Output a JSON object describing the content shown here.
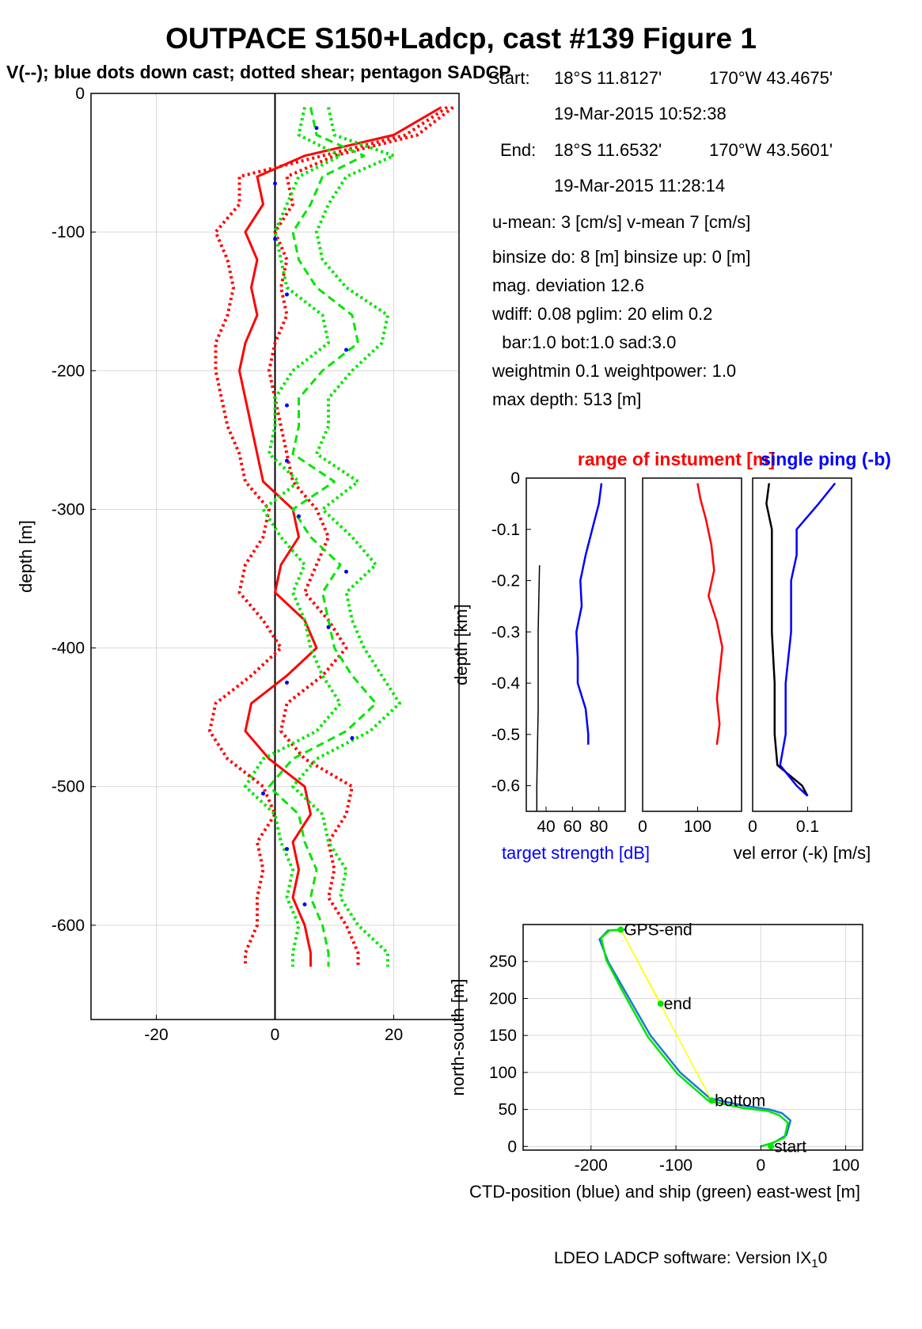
{
  "header": {
    "title": "OUTPACE S150+Ladcp, cast #139  Figure 1",
    "subtitle": "V(--); blue dots down cast; dotted shear; pentagon SADCP"
  },
  "info": {
    "start_label": "Start:",
    "start_lat": "18°S 11.8127'",
    "start_lon": "170°W 43.4675'",
    "start_time": "19-Mar-2015 10:52:38",
    "end_label": "End:",
    "end_lat": "18°S 11.6532'",
    "end_lon": "170°W 43.5601'",
    "end_time": "19-Mar-2015 11:28:14",
    "u_mean": "u-mean:   3 [cm/s]    v-mean   7 [cm/s]",
    "binsize": "binsize do: 8 [m]  binsize up:  0 [m]",
    "mag_dev": "mag. deviation 12.6",
    "wdiff": "wdiff: 0.08  pglim: 20  elim 0.2",
    "bar": "  bar:1.0 bot:1.0 sad:3.0",
    "weight": "weightmin 0.1  weightpower: 1.0",
    "maxdepth": "max depth: 513 [m]"
  },
  "footer": {
    "text": "LDEO LADCP software: Version IX",
    "sub": "1",
    "tail": "0"
  },
  "colors": {
    "red": "#ff0000",
    "green": "#00e600",
    "blue": "#0000ff",
    "yellow": "#ffff00",
    "ctd_blue": "#1f77d4",
    "black": "#000000"
  },
  "chart_data": [
    {
      "type": "line",
      "id": "velocity-profile",
      "ylabel": "depth [m]",
      "xlabel": "",
      "xlim": [
        -31,
        31
      ],
      "ylim": [
        -668,
        0
      ],
      "xticks": [
        -20,
        0,
        20
      ],
      "yticks": [
        0,
        -100,
        -200,
        -300,
        -400,
        -500,
        -600
      ],
      "grid": true,
      "series": [
        {
          "color": "red",
          "style": "solid",
          "depth": [
            -10,
            -30,
            -45,
            -60,
            -80,
            -100,
            -120,
            -140,
            -160,
            -180,
            -200,
            -220,
            -240,
            -260,
            -280,
            -300,
            -320,
            -340,
            -360,
            -380,
            -400,
            -420,
            -440,
            -460,
            -480,
            -500,
            -520,
            -540,
            -560,
            -580,
            -600,
            -620,
            -630
          ],
          "values": [
            28,
            20,
            5,
            -3,
            -2,
            -5,
            -3,
            -4,
            -3,
            -5,
            -6,
            -5,
            -4,
            -3,
            -2,
            3,
            4,
            1,
            0,
            5,
            7,
            2,
            -4,
            -5,
            -1,
            5,
            6,
            3,
            4,
            3,
            5,
            6,
            6
          ]
        },
        {
          "color": "red",
          "style": "dotted",
          "depth": [
            -10,
            -30,
            -45,
            -60,
            -80,
            -100,
            -120,
            -140,
            -160,
            -180,
            -200,
            -220,
            -240,
            -260,
            -280,
            -300,
            -320,
            -340,
            -360,
            -380,
            -400,
            -420,
            -440,
            -460,
            -480,
            -500,
            -520,
            -540,
            -560,
            -580,
            -600,
            -620,
            -630
          ],
          "values": [
            29,
            22,
            8,
            -6,
            -6,
            -10,
            -8,
            -7,
            -8,
            -10,
            -10,
            -9,
            -8,
            -6,
            -5,
            -1,
            -2,
            -5,
            -6,
            -2,
            1,
            -4,
            -10,
            -11,
            -8,
            -2,
            0,
            -3,
            -2,
            -3,
            -3,
            -5,
            -5
          ]
        },
        {
          "color": "red",
          "style": "dotted",
          "depth": [
            -10,
            -30,
            -45,
            -60,
            -80,
            -100,
            -120,
            -140,
            -160,
            -180,
            -200,
            -220,
            -240,
            -260,
            -280,
            -300,
            -320,
            -340,
            -360,
            -380,
            -400,
            -420,
            -440,
            -460,
            -480,
            -500,
            -520,
            -540,
            -560,
            -580,
            -600,
            -620,
            -630
          ],
          "values": [
            30,
            24,
            10,
            2,
            3,
            0,
            2,
            1,
            2,
            0,
            -1,
            0,
            1,
            2,
            3,
            7,
            9,
            7,
            5,
            9,
            12,
            8,
            2,
            1,
            5,
            13,
            12,
            9,
            10,
            9,
            12,
            14,
            14
          ]
        },
        {
          "color": "green",
          "style": "dashed",
          "depth": [
            -10,
            -30,
            -45,
            -60,
            -80,
            -100,
            -120,
            -140,
            -160,
            -180,
            -200,
            -220,
            -240,
            -260,
            -280,
            -300,
            -320,
            -340,
            -360,
            -380,
            -400,
            -420,
            -440,
            -460,
            -480,
            -500,
            -520,
            -540,
            -560,
            -580,
            -600,
            -620,
            -630
          ],
          "values": [
            6,
            7,
            15,
            8,
            6,
            3,
            4,
            7,
            13,
            14,
            8,
            4,
            4,
            3,
            10,
            3,
            6,
            11,
            8,
            9,
            10,
            13,
            17,
            12,
            3,
            -1,
            4,
            5,
            7,
            6,
            8,
            9,
            9
          ]
        },
        {
          "color": "green",
          "style": "dotted",
          "depth": [
            -10,
            -30,
            -45,
            -60,
            -80,
            -100,
            -120,
            -140,
            -160,
            -180,
            -200,
            -220,
            -240,
            -260,
            -280,
            -300,
            -320,
            -340,
            -360,
            -380,
            -400,
            -420,
            -440,
            -460,
            -480,
            -500,
            -520,
            -540,
            -560,
            -580,
            -600,
            -620,
            -630
          ],
          "values": [
            9,
            10,
            20,
            12,
            9,
            7,
            8,
            12,
            19,
            18,
            13,
            9,
            9,
            7,
            14,
            8,
            13,
            17,
            12,
            13,
            15,
            18,
            21,
            16,
            7,
            3,
            8,
            9,
            12,
            11,
            14,
            19,
            19
          ]
        },
        {
          "color": "green",
          "style": "dotted",
          "depth": [
            -10,
            -30,
            -45,
            -60,
            -80,
            -100,
            -120,
            -140,
            -160,
            -180,
            -200,
            -220,
            -240,
            -260,
            -280,
            -300,
            -320,
            -340,
            -360,
            -380,
            -400,
            -420,
            -440,
            -460,
            -480,
            -500,
            -520,
            -540,
            -560,
            -580,
            -600,
            -620,
            -630
          ],
          "values": [
            5,
            4,
            11,
            4,
            2,
            0,
            1,
            2,
            8,
            9,
            3,
            0,
            0,
            -1,
            4,
            -2,
            1,
            5,
            3,
            5,
            6,
            8,
            11,
            7,
            -2,
            -5,
            0,
            1,
            3,
            2,
            4,
            3,
            3
          ]
        },
        {
          "color": "blue",
          "style": "dots",
          "depth": [
            -25,
            -65,
            -105,
            -145,
            -185,
            -225,
            -265,
            -305,
            -345,
            -385,
            -425,
            -465,
            -505,
            -545,
            -585
          ],
          "values": [
            7,
            0,
            0,
            2,
            12,
            2,
            2,
            4,
            12,
            9,
            2,
            13,
            -2,
            2,
            5
          ]
        }
      ]
    },
    {
      "type": "line",
      "id": "target-strength",
      "ylabel": "depth [km]",
      "xlabel": "target strength [dB]",
      "xlim": [
        25,
        100
      ],
      "ylim": [
        -0.65,
        0
      ],
      "xticks": [
        40,
        60,
        80
      ],
      "yticks": [
        0,
        -0.1,
        -0.2,
        -0.3,
        -0.4,
        -0.5,
        -0.6
      ],
      "series": [
        {
          "color": "blue",
          "depth": [
            -0.01,
            -0.05,
            -0.1,
            -0.15,
            -0.2,
            -0.25,
            -0.3,
            -0.35,
            -0.4,
            -0.45,
            -0.5,
            -0.52
          ],
          "values": [
            82,
            80,
            75,
            70,
            66,
            67,
            63,
            64,
            64,
            70,
            72,
            72
          ]
        },
        {
          "color": "black",
          "depth": [
            -0.17,
            -0.3,
            -0.45,
            -0.6,
            -0.65
          ],
          "values": [
            35,
            34,
            34,
            33,
            33
          ]
        }
      ]
    },
    {
      "type": "line",
      "id": "range-of-instrument",
      "title": "range of instument [m]",
      "xlabel": "",
      "xlim": [
        0,
        180
      ],
      "ylim": [
        -0.65,
        0
      ],
      "xticks": [
        0,
        100
      ],
      "series": [
        {
          "color": "red",
          "depth": [
            -0.01,
            -0.04,
            -0.08,
            -0.13,
            -0.18,
            -0.23,
            -0.28,
            -0.33,
            -0.38,
            -0.43,
            -0.48,
            -0.52
          ],
          "values": [
            100,
            105,
            115,
            125,
            130,
            120,
            135,
            145,
            140,
            135,
            140,
            135
          ]
        }
      ]
    },
    {
      "type": "line",
      "id": "velocity-error",
      "title": "single ping (-b)",
      "xlabel": "vel error (-k) [m/s]",
      "xlim": [
        0,
        0.18
      ],
      "ylim": [
        -0.65,
        0
      ],
      "xticks": [
        0,
        0.1
      ],
      "series": [
        {
          "color": "black",
          "depth": [
            -0.01,
            -0.05,
            -0.1,
            -0.2,
            -0.3,
            -0.4,
            -0.5,
            -0.56,
            -0.6,
            -0.62
          ],
          "values": [
            0.03,
            0.025,
            0.035,
            0.035,
            0.035,
            0.04,
            0.04,
            0.045,
            0.09,
            0.1
          ]
        },
        {
          "color": "blue",
          "depth": [
            -0.01,
            -0.05,
            -0.1,
            -0.15,
            -0.2,
            -0.3,
            -0.4,
            -0.5,
            -0.56,
            -0.6,
            -0.62
          ],
          "values": [
            0.15,
            0.12,
            0.08,
            0.08,
            0.07,
            0.07,
            0.06,
            0.06,
            0.05,
            0.08,
            0.1
          ]
        }
      ]
    },
    {
      "type": "line",
      "id": "ctd-ship-position",
      "xlabel": "CTD-position (blue) and ship (green) east-west [m]",
      "ylabel": "north-south [m]",
      "xlim": [
        -280,
        120
      ],
      "ylim": [
        -5,
        300
      ],
      "xticks": [
        -200,
        -100,
        0,
        100
      ],
      "yticks": [
        0,
        50,
        100,
        150,
        200,
        250
      ],
      "annotations": [
        {
          "text": "GPS-end",
          "x": -165,
          "y": 293
        },
        {
          "text": "end",
          "x": -118,
          "y": 193
        },
        {
          "text": "bottom",
          "x": -58,
          "y": 62
        },
        {
          "text": "start",
          "x": 12,
          "y": 0
        }
      ],
      "series": [
        {
          "color": "ctd_blue",
          "x": [
            0,
            15,
            30,
            35,
            25,
            10,
            -20,
            -60,
            -95,
            -130,
            -160,
            -180,
            -190,
            -180,
            -160
          ],
          "y": [
            0,
            5,
            15,
            35,
            45,
            50,
            55,
            65,
            100,
            150,
            210,
            250,
            280,
            292,
            293
          ]
        },
        {
          "color": "green",
          "x": [
            0,
            12,
            28,
            32,
            22,
            8,
            -22,
            -62,
            -98,
            -133,
            -162,
            -182,
            -188,
            -178,
            -165
          ],
          "y": [
            0,
            4,
            12,
            32,
            42,
            48,
            52,
            62,
            98,
            148,
            208,
            252,
            282,
            292,
            293
          ]
        },
        {
          "color": "yellow",
          "x": [
            -165,
            -118
          ],
          "y": [
            293,
            193
          ]
        },
        {
          "color": "yellow",
          "x": [
            -165,
            -58
          ],
          "y": [
            293,
            62
          ]
        }
      ]
    }
  ]
}
